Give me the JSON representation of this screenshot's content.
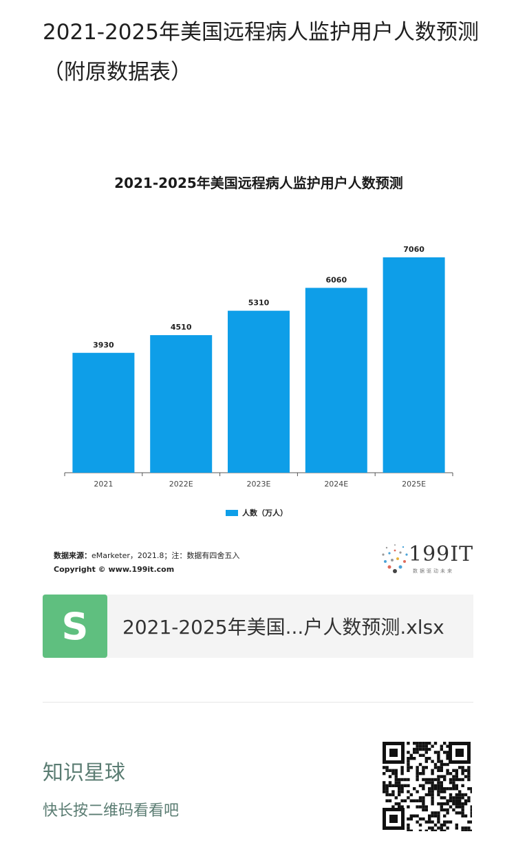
{
  "article": {
    "title": "2021-2025年美国远程病人监护用户人数预测（附原数据表）"
  },
  "chart_data": {
    "type": "bar",
    "title": "2021-2025年美国远程病人监护用户人数预测",
    "categories": [
      "2021",
      "2022E",
      "2023E",
      "2024E",
      "2025E"
    ],
    "series": [
      {
        "name": "人数（万人）",
        "values": [
          3930,
          4510,
          5310,
          6060,
          7060
        ],
        "color": "#0e9ee8"
      }
    ],
    "xlabel": "",
    "ylabel": "",
    "ylim": [
      0,
      7060
    ],
    "grid": false,
    "legend": "bottom"
  },
  "source": {
    "label": "数据来源：",
    "text": "eMarketer，2021.8；注：数据有四舍五入",
    "copyright": "Copyright © www.199it.com"
  },
  "logo": {
    "text": "199IT",
    "sub": "数据驱动未来"
  },
  "file": {
    "icon": "S",
    "name": "2021-2025年美国...户人数预测.xlsx"
  },
  "planet": {
    "title": "知识星球",
    "subtitle": "快长按二维码看看吧"
  },
  "icons": {
    "file_icon": "spreadsheet-icon",
    "qr": "qr-code-icon"
  }
}
